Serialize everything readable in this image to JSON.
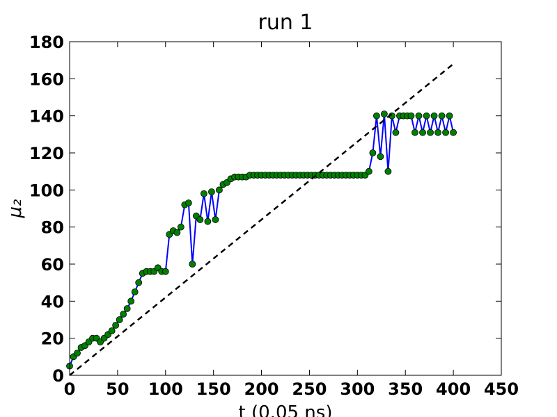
{
  "chart_data": {
    "type": "line",
    "title": "run 1",
    "x_label": "t (0.05 ns)",
    "y_label": "μ₂",
    "x": [
      0,
      4,
      8,
      12,
      16,
      20,
      24,
      28,
      32,
      36,
      40,
      44,
      48,
      52,
      56,
      60,
      64,
      68,
      72,
      76,
      80,
      84,
      88,
      92,
      96,
      100,
      104,
      108,
      112,
      116,
      120,
      124,
      128,
      132,
      136,
      140,
      144,
      148,
      152,
      156,
      160,
      164,
      168,
      172,
      176,
      180,
      184,
      188,
      192,
      196,
      200,
      204,
      208,
      212,
      216,
      220,
      224,
      228,
      232,
      236,
      240,
      244,
      248,
      252,
      256,
      260,
      264,
      268,
      272,
      276,
      280,
      284,
      288,
      292,
      296,
      300,
      304,
      308,
      312,
      316,
      320,
      324,
      328,
      332,
      336,
      340,
      344,
      348,
      352,
      356,
      360,
      364,
      368,
      372,
      376,
      380,
      384,
      388,
      392,
      396,
      400
    ],
    "series": [
      {
        "color": "#0000ff",
        "marker_color": "#008000",
        "values": [
          5,
          10,
          12,
          15,
          16,
          18,
          20,
          20,
          18,
          20,
          22,
          24,
          27,
          30,
          33,
          36,
          40,
          45,
          50,
          55,
          56,
          56,
          56,
          58,
          56,
          56,
          76,
          78,
          77,
          80,
          92,
          93,
          60,
          86,
          84,
          98,
          83,
          99,
          84,
          100,
          103,
          104,
          106,
          107,
          107,
          107,
          107,
          108,
          108,
          108,
          108,
          108,
          108,
          108,
          108,
          108,
          108,
          108,
          108,
          108,
          108,
          108,
          108,
          108,
          108,
          108,
          108,
          108,
          108,
          108,
          108,
          108,
          108,
          108,
          108,
          108,
          108,
          108,
          110,
          120,
          140,
          118,
          141,
          110,
          140,
          131,
          140,
          140,
          140,
          140,
          131,
          140,
          131,
          140,
          131,
          140,
          131,
          140,
          131,
          140,
          131
        ]
      }
    ],
    "reference_line": {
      "color": "#000000",
      "x": [
        0,
        400
      ],
      "values": [
        0,
        168
      ]
    },
    "xlim": [
      0,
      450
    ],
    "ylim": [
      0,
      180
    ],
    "xticks": [
      0,
      50,
      100,
      150,
      200,
      250,
      300,
      350,
      400,
      450
    ],
    "yticks": [
      0,
      20,
      40,
      60,
      80,
      100,
      120,
      140,
      160,
      180
    ],
    "grid": false
  }
}
